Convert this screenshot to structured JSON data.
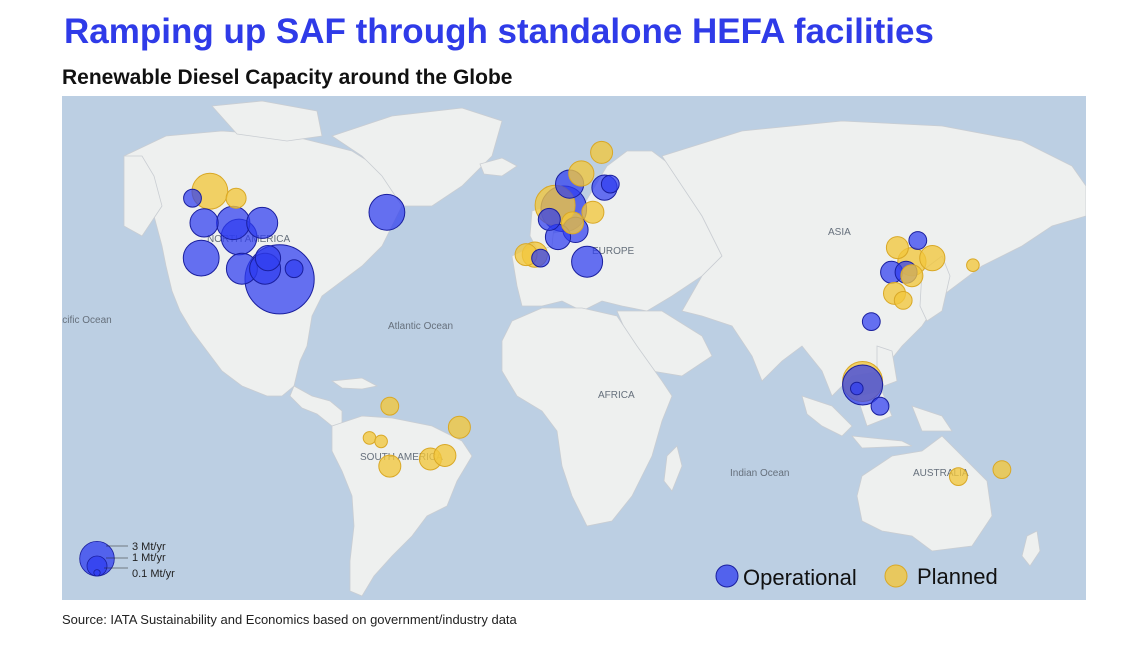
{
  "header": {
    "title": "Ramping up SAF through standalone HEFA facilities",
    "subtitle": "Renewable Diesel Capacity around the Globe"
  },
  "map": {
    "region_labels": [
      "NORTH AMERICA",
      "EUROPE",
      "ASIA",
      "AFRICA",
      "SOUTH AMERICA",
      "AUSTRALIA"
    ],
    "ocean_labels": [
      "Pacific Ocean",
      "Atlantic Ocean",
      "Indian Ocean"
    ],
    "colors": {
      "ocean": "#bccfe3",
      "land": "#eef0ef",
      "operational": "#2f3df0",
      "planned": "#f2c63c"
    },
    "facilities": [
      {
        "status": "planned",
        "capacity_mt_per_yr": 0.8,
        "lon": -122,
        "lat": 56
      },
      {
        "status": "operational",
        "capacity_mt_per_yr": 0.2,
        "lon": -128,
        "lat": 54
      },
      {
        "status": "planned",
        "capacity_mt_per_yr": 0.25,
        "lon": -113,
        "lat": 54
      },
      {
        "status": "operational",
        "capacity_mt_per_yr": 0.5,
        "lon": -124,
        "lat": 47
      },
      {
        "status": "operational",
        "capacity_mt_per_yr": 0.7,
        "lon": -114,
        "lat": 47
      },
      {
        "status": "operational",
        "capacity_mt_per_yr": 0.6,
        "lon": -104,
        "lat": 47
      },
      {
        "status": "operational",
        "capacity_mt_per_yr": 0.8,
        "lon": -112,
        "lat": 43
      },
      {
        "status": "operational",
        "capacity_mt_per_yr": 0.8,
        "lon": -125,
        "lat": 37
      },
      {
        "status": "operational",
        "capacity_mt_per_yr": 0.6,
        "lon": -111,
        "lat": 34
      },
      {
        "status": "operational",
        "capacity_mt_per_yr": 0.4,
        "lon": -102,
        "lat": 37
      },
      {
        "status": "operational",
        "capacity_mt_per_yr": 0.6,
        "lon": -103,
        "lat": 34
      },
      {
        "status": "operational",
        "capacity_mt_per_yr": 3.0,
        "lon": -98,
        "lat": 31
      },
      {
        "status": "operational",
        "capacity_mt_per_yr": 0.2,
        "lon": -93,
        "lat": 34
      },
      {
        "status": "operational",
        "capacity_mt_per_yr": 0.8,
        "lon": -61,
        "lat": 50
      },
      {
        "status": "planned",
        "capacity_mt_per_yr": 0.3,
        "lon": 13,
        "lat": 67
      },
      {
        "status": "planned",
        "capacity_mt_per_yr": 0.4,
        "lon": 6,
        "lat": 61
      },
      {
        "status": "operational",
        "capacity_mt_per_yr": 0.5,
        "lon": 2,
        "lat": 58
      },
      {
        "status": "operational",
        "capacity_mt_per_yr": 0.4,
        "lon": 14,
        "lat": 57
      },
      {
        "status": "operational",
        "capacity_mt_per_yr": 0.2,
        "lon": 16,
        "lat": 58
      },
      {
        "status": "planned",
        "capacity_mt_per_yr": 1.0,
        "lon": -3,
        "lat": 52
      },
      {
        "status": "operational",
        "capacity_mt_per_yr": 1.3,
        "lon": 0,
        "lat": 51
      },
      {
        "status": "operational",
        "capacity_mt_per_yr": 0.3,
        "lon": -5,
        "lat": 48
      },
      {
        "status": "planned",
        "capacity_mt_per_yr": 0.3,
        "lon": 3,
        "lat": 47
      },
      {
        "status": "operational",
        "capacity_mt_per_yr": 0.4,
        "lon": 4,
        "lat": 45
      },
      {
        "status": "planned",
        "capacity_mt_per_yr": 0.3,
        "lon": 10,
        "lat": 50
      },
      {
        "status": "operational",
        "capacity_mt_per_yr": 0.4,
        "lon": -2,
        "lat": 43
      },
      {
        "status": "planned",
        "capacity_mt_per_yr": 0.3,
        "lon": -13,
        "lat": 38
      },
      {
        "status": "planned",
        "capacity_mt_per_yr": 0.4,
        "lon": -10,
        "lat": 38
      },
      {
        "status": "operational",
        "capacity_mt_per_yr": 0.2,
        "lon": -8,
        "lat": 37
      },
      {
        "status": "operational",
        "capacity_mt_per_yr": 0.6,
        "lon": 8,
        "lat": 36
      },
      {
        "status": "planned",
        "capacity_mt_per_yr": 0.3,
        "lon": 115,
        "lat": 40
      },
      {
        "status": "operational",
        "capacity_mt_per_yr": 0.2,
        "lon": 122,
        "lat": 42
      },
      {
        "status": "planned",
        "capacity_mt_per_yr": 0.5,
        "lon": 120,
        "lat": 36
      },
      {
        "status": "operational",
        "capacity_mt_per_yr": 0.3,
        "lon": 113,
        "lat": 33
      },
      {
        "status": "operational",
        "capacity_mt_per_yr": 0.3,
        "lon": 118,
        "lat": 33
      },
      {
        "status": "planned",
        "capacity_mt_per_yr": 0.3,
        "lon": 120,
        "lat": 32
      },
      {
        "status": "planned",
        "capacity_mt_per_yr": 0.4,
        "lon": 127,
        "lat": 37
      },
      {
        "status": "planned",
        "capacity_mt_per_yr": 0.3,
        "lon": 114,
        "lat": 27
      },
      {
        "status": "planned",
        "capacity_mt_per_yr": 0.2,
        "lon": 117,
        "lat": 25
      },
      {
        "status": "planned",
        "capacity_mt_per_yr": 0.1,
        "lon": 141,
        "lat": 35
      },
      {
        "status": "operational",
        "capacity_mt_per_yr": 0.2,
        "lon": 106,
        "lat": 19
      },
      {
        "status": "planned",
        "capacity_mt_per_yr": 1.0,
        "lon": 103,
        "lat": 2
      },
      {
        "status": "operational",
        "capacity_mt_per_yr": 1.0,
        "lon": 103,
        "lat": 1
      },
      {
        "status": "operational",
        "capacity_mt_per_yr": 0.1,
        "lon": 101,
        "lat": 0
      },
      {
        "status": "operational",
        "capacity_mt_per_yr": 0.2,
        "lon": 109,
        "lat": -5
      },
      {
        "status": "planned",
        "capacity_mt_per_yr": 0.2,
        "lon": 136,
        "lat": -25
      },
      {
        "status": "planned",
        "capacity_mt_per_yr": 0.2,
        "lon": 151,
        "lat": -23
      },
      {
        "status": "planned",
        "capacity_mt_per_yr": 0.2,
        "lon": -60,
        "lat": -5
      },
      {
        "status": "planned",
        "capacity_mt_per_yr": 0.1,
        "lon": -67,
        "lat": -14
      },
      {
        "status": "planned",
        "capacity_mt_per_yr": 0.1,
        "lon": -63,
        "lat": -15
      },
      {
        "status": "planned",
        "capacity_mt_per_yr": 0.3,
        "lon": -36,
        "lat": -11
      },
      {
        "status": "planned",
        "capacity_mt_per_yr": 0.3,
        "lon": -60,
        "lat": -22
      },
      {
        "status": "planned",
        "capacity_mt_per_yr": 0.3,
        "lon": -46,
        "lat": -20
      },
      {
        "status": "planned",
        "capacity_mt_per_yr": 0.3,
        "lon": -41,
        "lat": -19
      }
    ]
  },
  "size_legend": {
    "labels": [
      "3 Mt/yr",
      "1 Mt/yr",
      "0.1 Mt/yr"
    ],
    "values": [
      3,
      1,
      0.1
    ]
  },
  "status_legend": {
    "operational_label": "Operational",
    "planned_label": "Planned"
  },
  "footer": {
    "source": "Source: IATA Sustainability and Economics based on government/industry data"
  }
}
